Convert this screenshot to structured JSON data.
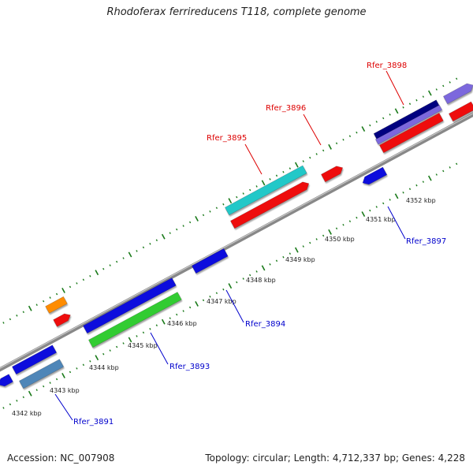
{
  "title": "Rhodoferax ferrireducens T118, complete genome",
  "footer": {
    "accession": "Accession: NC_007908",
    "summary": "Topology: circular; Length: 4,712,337 bp; Genes: 4,228"
  },
  "colors": {
    "forward_label": "#dd0000",
    "reverse_label": "#0000cc",
    "backbone": "#888888",
    "ticks": "#1a7a1a"
  },
  "scale_labels": [
    "4342 kbp",
    "4343 kbp",
    "4344 kbp",
    "4345 kbp",
    "4346 kbp",
    "4347 kbp",
    "4348 kbp",
    "4349 kbp",
    "4350 kbp",
    "4351 kbp",
    "4352 kbp"
  ],
  "gene_labels": [
    {
      "text": "Rfer_3895",
      "strand": "forward"
    },
    {
      "text": "Rfer_3896",
      "strand": "forward"
    },
    {
      "text": "Rfer_3898",
      "strand": "forward"
    },
    {
      "text": "Rfer_3891",
      "strand": "reverse"
    },
    {
      "text": "Rfer_3893",
      "strand": "reverse"
    },
    {
      "text": "Rfer_3894",
      "strand": "reverse"
    },
    {
      "text": "Rfer_3897",
      "strand": "reverse"
    }
  ],
  "features": [
    {
      "id": "f-orange",
      "color": "#ff8c00"
    },
    {
      "id": "f-red-small-left",
      "color": "#ee1111"
    },
    {
      "id": "f-cyan-3895",
      "color": "#20c8c8"
    },
    {
      "id": "f-red-3895",
      "color": "#ee1111"
    },
    {
      "id": "f-red-3896",
      "color": "#ee1111"
    },
    {
      "id": "f-navy-3898",
      "color": "#000080"
    },
    {
      "id": "f-violet-3898",
      "color": "#7b68dd"
    },
    {
      "id": "f-violet-3898b",
      "color": "#7b68dd"
    },
    {
      "id": "f-red-3898",
      "color": "#ee1111"
    },
    {
      "id": "f-red-3898b",
      "color": "#ee1111"
    },
    {
      "id": "f-blue-left-edge",
      "color": "#1010dd"
    },
    {
      "id": "f-blue-3891",
      "color": "#1010dd"
    },
    {
      "id": "f-steel-3891",
      "color": "#4f86b8"
    },
    {
      "id": "f-blue-3893",
      "color": "#1010dd"
    },
    {
      "id": "f-green-3893",
      "color": "#33cc33"
    },
    {
      "id": "f-blue-3894",
      "color": "#1010dd"
    },
    {
      "id": "f-blue-3897",
      "color": "#1010dd"
    }
  ]
}
